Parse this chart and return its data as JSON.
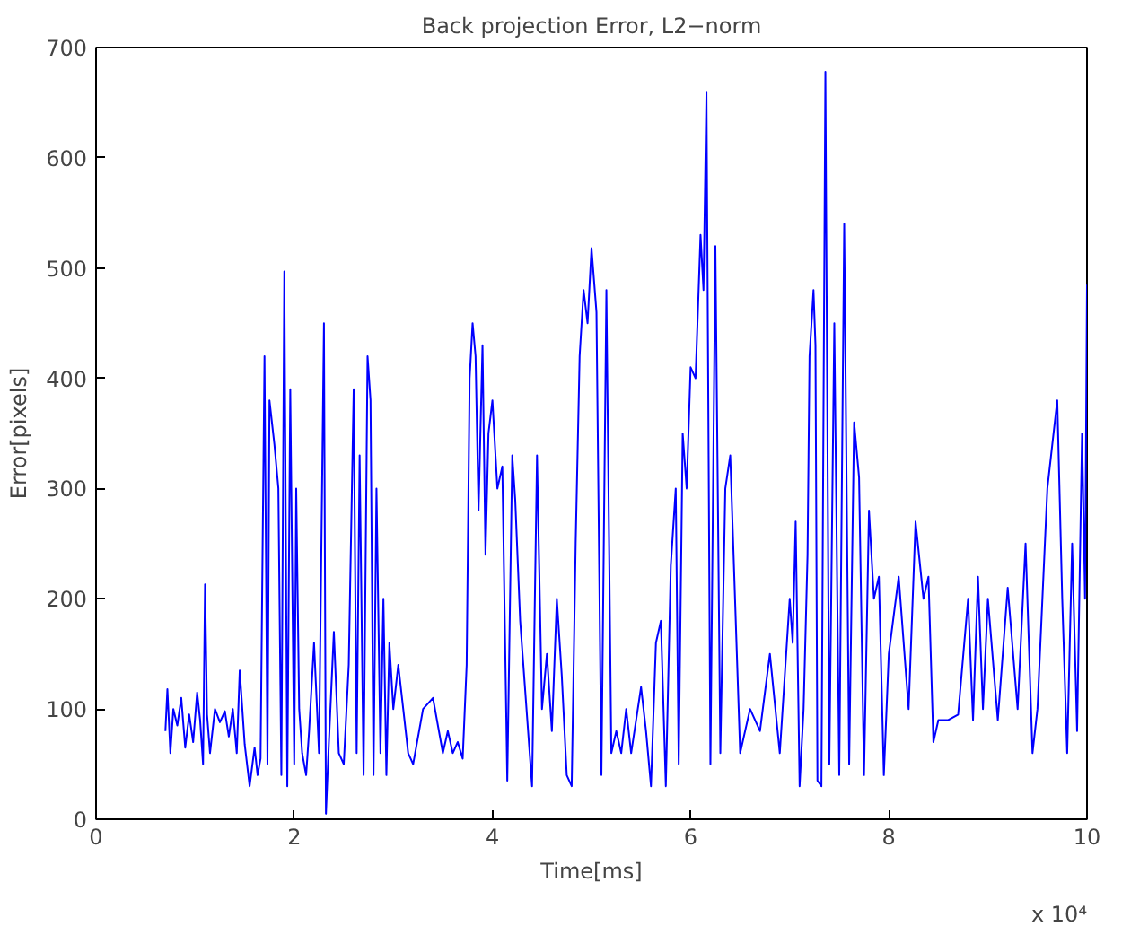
{
  "chart_data": {
    "type": "line",
    "title": "Back projection Error, L2−norm",
    "xlabel": "Time[ms]",
    "ylabel": "Error[pixels]",
    "annotations": [
      "x 10⁴"
    ],
    "xlim": [
      0,
      10
    ],
    "xticks": [
      0,
      2,
      4,
      6,
      8,
      10
    ],
    "ylim": [
      0,
      700
    ],
    "yticks": [
      0,
      100,
      200,
      300,
      400,
      500,
      600,
      700
    ],
    "grid": false,
    "line_style": "solid",
    "marker": "none",
    "series": [
      {
        "color": "#0000ff",
        "x": [
          0.7,
          0.72,
          0.75,
          0.78,
          0.82,
          0.86,
          0.9,
          0.94,
          0.98,
          1.02,
          1.05,
          1.08,
          1.1,
          1.12,
          1.15,
          1.2,
          1.25,
          1.3,
          1.34,
          1.38,
          1.42,
          1.45,
          1.5,
          1.55,
          1.6,
          1.63,
          1.66,
          1.7,
          1.73,
          1.75,
          1.8,
          1.84,
          1.87,
          1.9,
          1.93,
          1.96,
          2.0,
          2.02,
          2.05,
          2.08,
          2.12,
          2.15,
          2.2,
          2.25,
          2.3,
          2.32,
          2.35,
          2.4,
          2.45,
          2.5,
          2.55,
          2.6,
          2.63,
          2.66,
          2.7,
          2.74,
          2.77,
          2.8,
          2.83,
          2.87,
          2.9,
          2.93,
          2.96,
          3.0,
          3.05,
          3.1,
          3.15,
          3.2,
          3.3,
          3.4,
          3.5,
          3.55,
          3.6,
          3.65,
          3.7,
          3.74,
          3.77,
          3.8,
          3.83,
          3.86,
          3.9,
          3.93,
          3.96,
          4.0,
          4.05,
          4.1,
          4.15,
          4.2,
          4.23,
          4.28,
          4.4,
          4.45,
          4.5,
          4.55,
          4.6,
          4.65,
          4.7,
          4.75,
          4.8,
          4.84,
          4.88,
          4.92,
          4.96,
          5.0,
          5.05,
          5.1,
          5.15,
          5.2,
          5.25,
          5.3,
          5.35,
          5.4,
          5.5,
          5.55,
          5.6,
          5.65,
          5.7,
          5.75,
          5.8,
          5.85,
          5.88,
          5.92,
          5.96,
          6.0,
          6.05,
          6.1,
          6.13,
          6.16,
          6.2,
          6.25,
          6.3,
          6.35,
          6.4,
          6.5,
          6.6,
          6.7,
          6.8,
          6.9,
          7.0,
          7.03,
          7.06,
          7.1,
          7.14,
          7.18,
          7.2,
          7.24,
          7.26,
          7.28,
          7.32,
          7.36,
          7.4,
          7.45,
          7.5,
          7.55,
          7.6,
          7.65,
          7.7,
          7.75,
          7.8,
          7.85,
          7.9,
          7.95,
          8.0,
          8.1,
          8.2,
          8.27,
          8.35,
          8.4,
          8.45,
          8.5,
          8.6,
          8.7,
          8.8,
          8.85,
          8.9,
          8.95,
          9.0,
          9.1,
          9.2,
          9.3,
          9.38,
          9.45,
          9.5,
          9.6,
          9.7,
          9.75,
          9.8,
          9.85,
          9.9,
          9.95,
          9.98,
          10.0
        ],
        "values": [
          80,
          118,
          60,
          100,
          85,
          110,
          65,
          95,
          70,
          115,
          90,
          50,
          213,
          95,
          60,
          100,
          88,
          98,
          75,
          100,
          60,
          135,
          68,
          30,
          65,
          40,
          55,
          420,
          50,
          380,
          340,
          300,
          40,
          497,
          30,
          390,
          50,
          300,
          100,
          60,
          40,
          80,
          160,
          60,
          450,
          5,
          70,
          170,
          60,
          50,
          140,
          390,
          60,
          330,
          40,
          420,
          380,
          40,
          300,
          60,
          200,
          40,
          160,
          100,
          140,
          100,
          60,
          50,
          100,
          110,
          60,
          80,
          60,
          70,
          55,
          140,
          400,
          450,
          420,
          280,
          430,
          240,
          350,
          380,
          300,
          320,
          35,
          330,
          290,
          180,
          30,
          330,
          100,
          150,
          80,
          200,
          130,
          40,
          30,
          250,
          420,
          480,
          450,
          518,
          460,
          40,
          480,
          60,
          80,
          60,
          100,
          60,
          120,
          80,
          30,
          160,
          180,
          30,
          230,
          300,
          50,
          350,
          300,
          410,
          400,
          530,
          480,
          660,
          50,
          520,
          60,
          300,
          330,
          60,
          100,
          80,
          150,
          60,
          200,
          160,
          270,
          30,
          100,
          240,
          420,
          480,
          430,
          35,
          30,
          678,
          50,
          450,
          40,
          540,
          50,
          360,
          310,
          40,
          280,
          200,
          220,
          40,
          150,
          220,
          100,
          270,
          200,
          220,
          70,
          90,
          90,
          95,
          200,
          90,
          220,
          100,
          200,
          90,
          210,
          100,
          250,
          60,
          100,
          300,
          380,
          200,
          60,
          250,
          80,
          350,
          200,
          485
        ]
      }
    ]
  }
}
